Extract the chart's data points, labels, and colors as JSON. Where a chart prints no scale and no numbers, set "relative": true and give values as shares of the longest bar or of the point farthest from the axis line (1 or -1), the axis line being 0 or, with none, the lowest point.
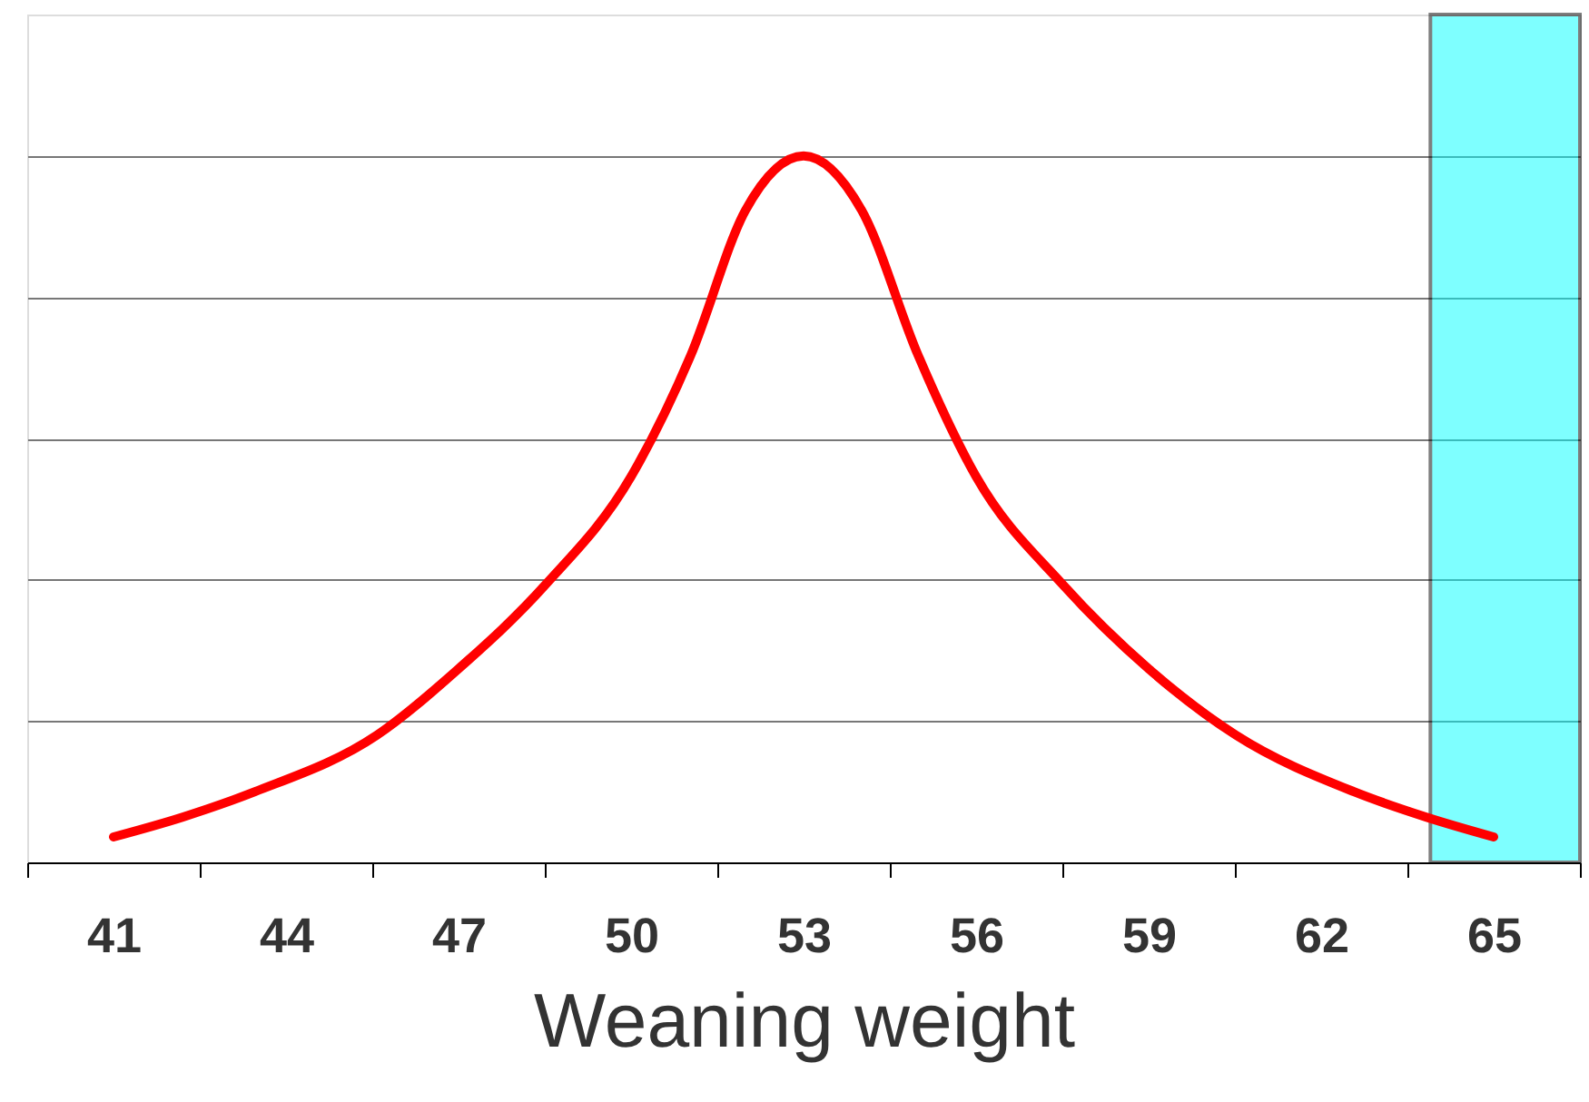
{
  "chart_data": {
    "type": "line",
    "xlabel": "Weaning weight",
    "relative": true,
    "x": [
      41,
      42.2,
      43.46,
      45.58,
      47,
      48.5,
      50,
      51.04,
      51.99,
      53,
      54.01,
      54.99,
      56,
      57.52,
      59,
      60.52,
      62.57,
      63.83,
      65
    ],
    "series": [
      {
        "color": "#ff0000",
        "values": [
          0.036,
          0.064,
          0.1,
          0.18,
          0.274,
          0.392,
          0.546,
          0.718,
          0.923,
          1.0,
          0.923,
          0.718,
          0.546,
          0.392,
          0.274,
          0.18,
          0.1,
          0.064,
          0.036
        ]
      }
    ],
    "xlim": [
      39.5,
      66.5
    ],
    "xticks": [
      {
        "value": 39.5,
        "label": null
      },
      41,
      {
        "value": 42.5,
        "label": null
      },
      44,
      {
        "value": 45.5,
        "label": null
      },
      47,
      {
        "value": 48.5,
        "label": null
      },
      50,
      {
        "value": 51.5,
        "label": null
      },
      53,
      {
        "value": 54.5,
        "label": null
      },
      56,
      {
        "value": 57.5,
        "label": null
      },
      59,
      {
        "value": 60.5,
        "label": null
      },
      62,
      {
        "value": 63.5,
        "label": null
      },
      65,
      {
        "value": 66.5,
        "label": null
      }
    ],
    "bands": [
      {
        "axis": "x",
        "from": 63.9,
        "to": 66.5,
        "color": "#00ffff"
      }
    ],
    "grid": "y",
    "tick_labels": "x"
  }
}
